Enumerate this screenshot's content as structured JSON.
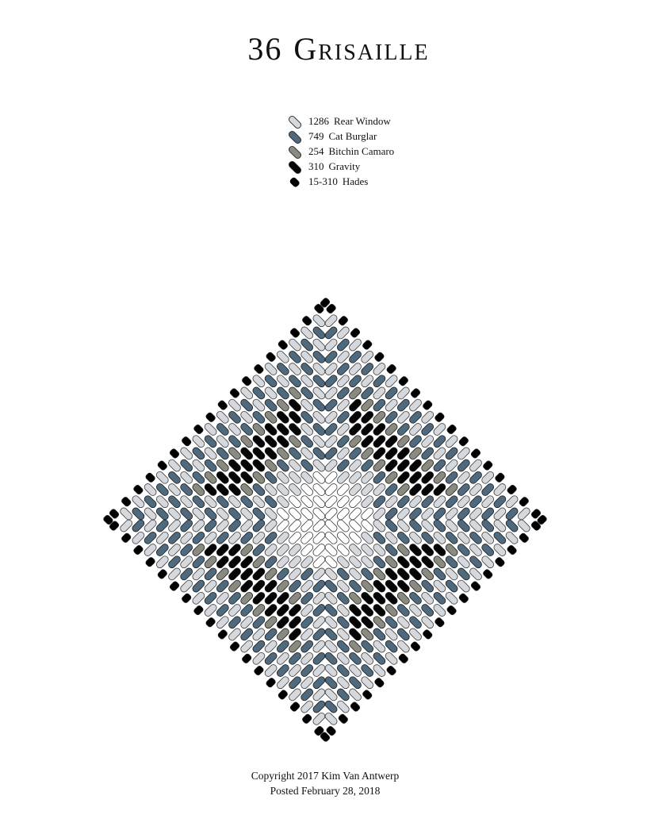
{
  "title": {
    "number": "36",
    "name": "Grisaille"
  },
  "legend": [
    {
      "key": "L",
      "code": "1286",
      "name": "Rear Window",
      "color": "#d5d8dc",
      "shape": "long"
    },
    {
      "key": "B",
      "code": "749",
      "name": "Cat Burglar",
      "color": "#4f6a7e",
      "shape": "long"
    },
    {
      "key": "G",
      "code": "254",
      "name": "Bitchin Camaro",
      "color": "#8a8b80",
      "shape": "long"
    },
    {
      "key": "K",
      "code": "310",
      "name": "Gravity",
      "color": "#060606",
      "shape": "long"
    },
    {
      "key": "H",
      "code": "15-310",
      "name": "Hades",
      "color": "#000000",
      "shape": "short"
    }
  ],
  "unlisted_colors": {
    "W": "#ffffff"
  },
  "pattern": {
    "layout": "diamond, four mirrored quadrants",
    "quadrant_rows_from_center": [
      "WWWWLBLBLBLBLBLBLH",
      "WWWLBLBLBLBLBLBLH",
      "WWLLLBGKKKGBLBLH",
      "WLLLBGKKKGBLBLH",
      "LBLBGKKKGBLBLH",
      "BLBGKKKGBLBLH",
      "LBGKKKGBLBLH",
      "BLKKKGBLBLH",
      "LBKKGBLBLH",
      "BLKGBLBLH",
      "LBGBLBLH",
      "BLBLBLH",
      "LBLBLH",
      "BLBLH",
      "LBLH",
      "BLH",
      "LH",
      "H"
    ],
    "tip_bead": "H"
  },
  "footer": {
    "copyright": "Copyright 2017 Kim Van Antwerp",
    "posted": "Posted February 28, 2018"
  }
}
